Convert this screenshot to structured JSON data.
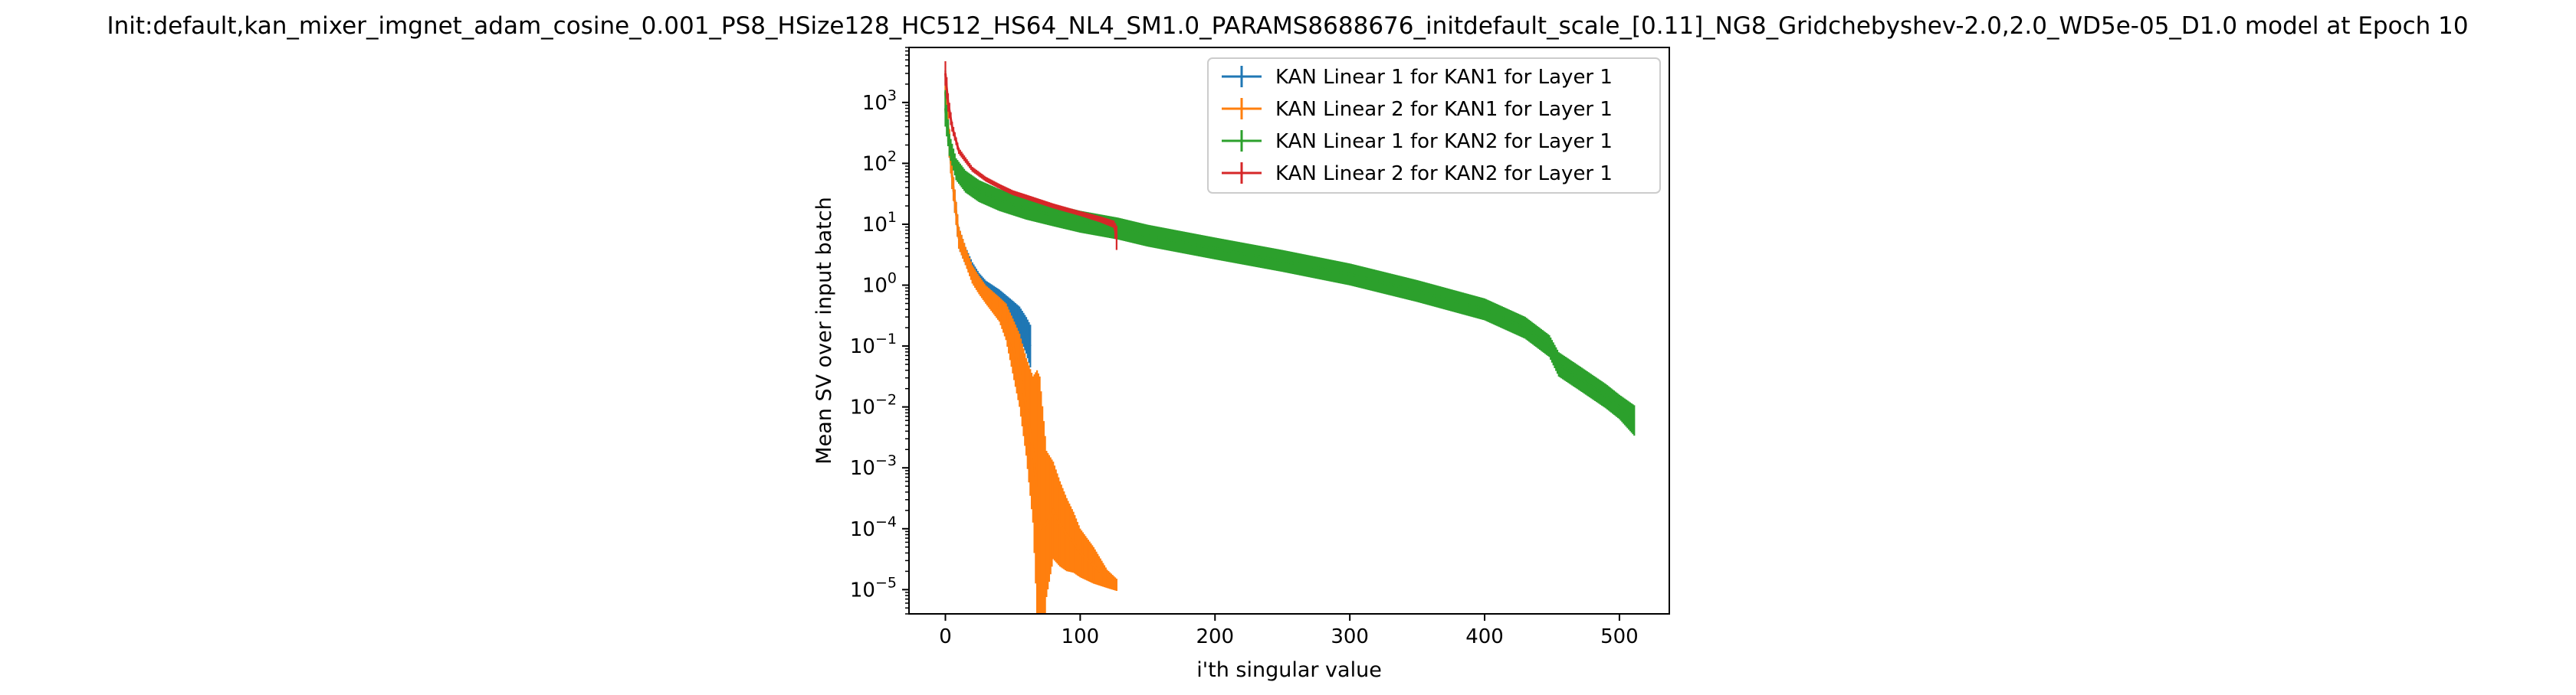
{
  "chart_data": {
    "type": "line",
    "title": "Init:default,kan_mixer_imgnet_adam_cosine_0.001_PS8_HSize128_HC512_HS64_NL4_SM1.0_PARAMS8688676_initdefault_scale_[0.11]_NG8_Gridchebyshev-2.0,2.0_WD5e-05_D1.0 model at Epoch 10",
    "xlabel": "i'th singular value",
    "ylabel": "Mean SV over input batch",
    "yscale": "log",
    "xlim": [
      -27,
      537
    ],
    "ylim": [
      4e-06,
      8000
    ],
    "grid": false,
    "legend_position": "top-right",
    "error_bars": true,
    "x_ticks": [
      {
        "value": 0,
        "label": "0"
      },
      {
        "value": 100,
        "label": "100"
      },
      {
        "value": 200,
        "label": "200"
      },
      {
        "value": 300,
        "label": "300"
      },
      {
        "value": 400,
        "label": "400"
      },
      {
        "value": 500,
        "label": "500"
      }
    ],
    "y_ticks": [
      {
        "value": 1e-05,
        "base": "10",
        "exp": "−5"
      },
      {
        "value": 0.0001,
        "base": "10",
        "exp": "−4"
      },
      {
        "value": 0.001,
        "base": "10",
        "exp": "−3"
      },
      {
        "value": 0.01,
        "base": "10",
        "exp": "−2"
      },
      {
        "value": 0.1,
        "base": "10",
        "exp": "−1"
      },
      {
        "value": 1,
        "base": "10",
        "exp": "0"
      },
      {
        "value": 10,
        "base": "10",
        "exp": "1"
      },
      {
        "value": 100,
        "base": "10",
        "exp": "2"
      },
      {
        "value": 1000,
        "base": "10",
        "exp": "3"
      }
    ],
    "series": [
      {
        "name": "KAN Linear 1 for KAN1 for Layer 1",
        "color": "#1f77b4",
        "x": [
          0,
          2,
          5,
          10,
          15,
          20,
          25,
          30,
          40,
          50,
          55,
          60,
          63
        ],
        "y": [
          1500,
          400,
          60,
          6,
          3,
          1.8,
          1.2,
          0.9,
          0.6,
          0.35,
          0.25,
          0.15,
          0.1
        ],
        "err": [
          0.35,
          0.25,
          0.2,
          0.18,
          0.15,
          0.12,
          0.12,
          0.12,
          0.15,
          0.2,
          0.25,
          0.3,
          0.35
        ]
      },
      {
        "name": "KAN Linear 2 for KAN1 for Layer 1",
        "color": "#ff7f0e",
        "x": [
          0,
          2,
          5,
          10,
          15,
          20,
          25,
          30,
          40,
          45,
          50,
          55,
          60,
          65,
          68,
          70,
          75,
          80,
          85,
          90,
          95,
          100,
          110,
          120,
          127
        ],
        "y": [
          1500,
          400,
          60,
          6,
          3,
          1.5,
          1,
          0.7,
          0.4,
          0.25,
          0.1,
          0.04,
          0.01,
          0.002,
          0.0004,
          0.0001,
          0.00012,
          0.0002,
          0.00012,
          8e-05,
          6e-05,
          4e-05,
          2.5e-05,
          1.5e-05,
          1.2e-05
        ],
        "err": [
          0.35,
          0.25,
          0.2,
          0.18,
          0.15,
          0.15,
          0.15,
          0.15,
          0.2,
          0.3,
          0.45,
          0.6,
          0.8,
          1.2,
          2,
          2.5,
          1.2,
          0.8,
          0.7,
          0.6,
          0.5,
          0.4,
          0.3,
          0.15,
          0.1
        ]
      },
      {
        "name": "KAN Linear 1 for KAN2 for Layer 1",
        "color": "#2ca02c",
        "x": [
          0,
          3,
          8,
          15,
          25,
          40,
          60,
          80,
          100,
          128,
          150,
          200,
          250,
          300,
          350,
          400,
          430,
          448,
          455,
          470,
          490,
          500,
          511
        ],
        "y": [
          800,
          200,
          80,
          50,
          35,
          25,
          18,
          14,
          11,
          8.5,
          6.5,
          4,
          2.5,
          1.5,
          0.8,
          0.4,
          0.2,
          0.1,
          0.05,
          0.03,
          0.015,
          0.01,
          0.006
        ],
        "err": [
          0.3,
          0.18,
          0.18,
          0.18,
          0.18,
          0.18,
          0.18,
          0.18,
          0.18,
          0.18,
          0.18,
          0.18,
          0.18,
          0.18,
          0.18,
          0.18,
          0.18,
          0.18,
          0.2,
          0.2,
          0.2,
          0.2,
          0.25
        ]
      },
      {
        "name": "KAN Linear 2 for KAN2 for Layer 1",
        "color": "#d62728",
        "x": [
          0,
          2,
          5,
          10,
          20,
          30,
          40,
          50,
          60,
          80,
          100,
          115,
          125,
          127
        ],
        "y": [
          3000,
          1000,
          400,
          160,
          80,
          55,
          42,
          33,
          28,
          20,
          15,
          12,
          10,
          6
        ],
        "err": [
          0.2,
          0.15,
          0.08,
          0.05,
          0.04,
          0.04,
          0.04,
          0.04,
          0.04,
          0.04,
          0.04,
          0.05,
          0.06,
          0.2
        ]
      }
    ]
  }
}
